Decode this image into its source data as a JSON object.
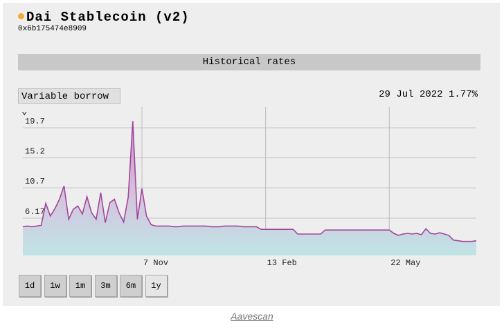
{
  "header": {
    "title": "Dai Stablecoin (v2)",
    "address": "0x6b175474e8909"
  },
  "section_title": "Historical rates",
  "selector": "Variable borrow",
  "current": {
    "date": "29 Jul 2022",
    "rate": "1.77%"
  },
  "ranges": [
    "1d",
    "1w",
    "1m",
    "3m",
    "6m",
    "1y"
  ],
  "caption": "Aavescan",
  "chart_data": {
    "type": "line",
    "color": "#a0479b",
    "categories": [
      null,
      null,
      null,
      null,
      null,
      null,
      null,
      null,
      null,
      null,
      null,
      null,
      null,
      null,
      null,
      null,
      null,
      null,
      null,
      null,
      null,
      null,
      null,
      null,
      null,
      null,
      "7 Nov",
      null,
      null,
      null,
      null,
      null,
      null,
      null,
      null,
      null,
      null,
      null,
      null,
      null,
      null,
      null,
      null,
      null,
      null,
      null,
      null,
      null,
      null,
      null,
      null,
      null,
      null,
      "13 Feb",
      null,
      null,
      null,
      null,
      null,
      null,
      null,
      null,
      null,
      null,
      null,
      null,
      null,
      null,
      null,
      null,
      null,
      null,
      null,
      null,
      null,
      null,
      null,
      null,
      null,
      null,
      "22 May",
      null,
      null,
      null,
      null,
      null,
      null,
      null,
      null,
      null,
      null,
      null,
      null,
      null,
      null,
      null,
      null,
      null,
      null,
      null
    ],
    "values": [
      4.9,
      5.0,
      4.9,
      5.0,
      5.1,
      8.4,
      6.5,
      7.6,
      9.0,
      11.0,
      6.0,
      7.5,
      8.0,
      6.8,
      9.4,
      7.0,
      6.0,
      10.0,
      5.5,
      8.5,
      9.0,
      7.0,
      5.6,
      9.3,
      20.7,
      6.0,
      10.6,
      6.5,
      5.2,
      5.0,
      5.0,
      5.0,
      5.0,
      4.9,
      4.9,
      5.0,
      5.0,
      5.0,
      5.0,
      5.0,
      5.0,
      4.9,
      4.9,
      4.9,
      5.0,
      5.0,
      5.0,
      5.0,
      4.9,
      4.9,
      4.9,
      4.9,
      4.5,
      4.5,
      4.5,
      4.5,
      4.5,
      4.5,
      4.5,
      4.5,
      3.8,
      3.8,
      3.8,
      3.8,
      3.8,
      3.8,
      4.4,
      4.4,
      4.4,
      4.4,
      4.4,
      4.4,
      4.4,
      4.4,
      4.4,
      4.4,
      4.4,
      4.4,
      4.4,
      4.4,
      4.4,
      3.9,
      3.6,
      3.8,
      3.9,
      3.8,
      3.9,
      3.7,
      4.6,
      3.9,
      3.8,
      4.0,
      3.8,
      3.6,
      2.9,
      2.8,
      2.7,
      2.7,
      2.7,
      2.8
    ],
    "ylim": [
      0.6,
      22.8
    ],
    "yticks": [
      6.17,
      10.7,
      15.2,
      19.7
    ],
    "grid": true
  }
}
